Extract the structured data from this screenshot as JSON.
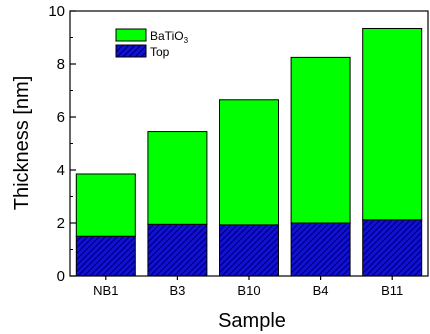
{
  "chart_data": {
    "type": "bar",
    "stacked": true,
    "xlabel": "Sample",
    "ylabel": "Thickness [nm]",
    "ylim": [
      0,
      10
    ],
    "yticks": [
      "0",
      "2",
      "4",
      "6",
      "8",
      "10"
    ],
    "categories": [
      "NB1",
      "B3",
      "B10",
      "B4",
      "B11"
    ],
    "legend_position": "top-left",
    "series": [
      {
        "name": "Top",
        "values": [
          1.5,
          1.95,
          1.93,
          2.0,
          2.12
        ],
        "color": "#1010d8",
        "pattern": "diagonal-hatch"
      },
      {
        "name": "BaTiO",
        "name_subscript": "3",
        "values": [
          2.35,
          3.5,
          4.72,
          6.25,
          7.22
        ],
        "color": "#00ff00",
        "pattern": "solid"
      }
    ],
    "grid": false
  }
}
